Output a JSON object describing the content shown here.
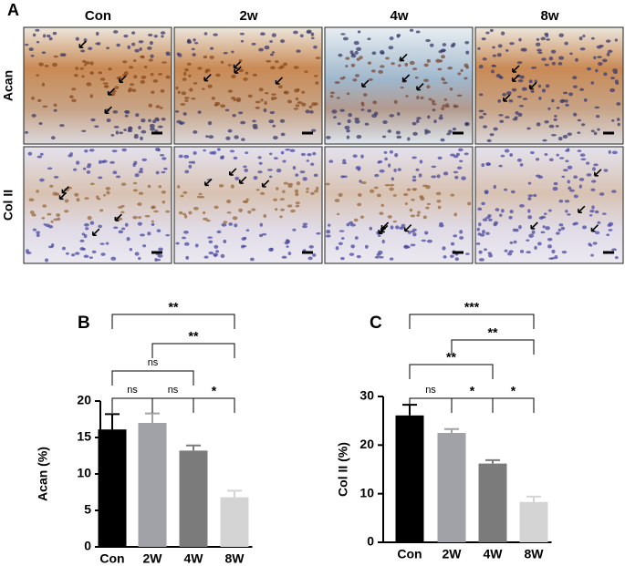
{
  "figure_a": {
    "panel_label": "A",
    "columns": [
      "Con",
      "2w",
      "4w",
      "8w"
    ],
    "rows": [
      "Acan",
      "Col II"
    ]
  },
  "chart_data": [
    {
      "type": "bar",
      "panel_label": "B",
      "y_label": "Acan (%)",
      "categories": [
        "Con",
        "2W",
        "4W",
        "8W"
      ],
      "values": [
        16.1,
        17.0,
        13.2,
        6.8
      ],
      "errors": [
        2.1,
        1.3,
        0.7,
        0.9
      ],
      "colors": [
        "#000000",
        "#a1a1a8",
        "#7b7b7b",
        "#d4d4d4"
      ],
      "ylim": [
        0,
        20
      ],
      "yticks": [
        0,
        5,
        10,
        15,
        20
      ],
      "annotations": [
        {
          "from": 0,
          "to": 1,
          "label": "ns"
        },
        {
          "from": 1,
          "to": 2,
          "label": "ns"
        },
        {
          "from": 2,
          "to": 3,
          "label": "*"
        },
        {
          "from": 0,
          "to": 2,
          "label": "ns"
        },
        {
          "from": 1,
          "to": 3,
          "label": "**"
        },
        {
          "from": 0,
          "to": 3,
          "label": "**"
        }
      ]
    },
    {
      "type": "bar",
      "panel_label": "C",
      "y_label": "Col II (%)",
      "categories": [
        "Con",
        "2W",
        "4W",
        "8W"
      ],
      "values": [
        26.1,
        22.5,
        16.2,
        8.3
      ],
      "errors": [
        2.2,
        0.8,
        0.7,
        1.1
      ],
      "colors": [
        "#000000",
        "#a1a1a8",
        "#7b7b7b",
        "#d4d4d4"
      ],
      "ylim": [
        0,
        30
      ],
      "yticks": [
        0,
        10,
        20,
        30
      ],
      "annotations": [
        {
          "from": 0,
          "to": 1,
          "label": "ns"
        },
        {
          "from": 1,
          "to": 2,
          "label": "*"
        },
        {
          "from": 2,
          "to": 3,
          "label": "*"
        },
        {
          "from": 0,
          "to": 2,
          "label": "**"
        },
        {
          "from": 1,
          "to": 3,
          "label": "**"
        },
        {
          "from": 0,
          "to": 3,
          "label": "***"
        }
      ]
    }
  ]
}
